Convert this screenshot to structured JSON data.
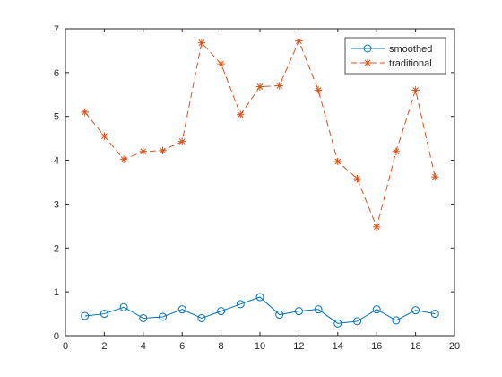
{
  "chart_data": {
    "type": "line",
    "title": "",
    "xlabel": "",
    "ylabel": "",
    "xlim": [
      0,
      20
    ],
    "ylim": [
      0,
      7
    ],
    "x_ticks": [
      0,
      2,
      4,
      6,
      8,
      10,
      12,
      14,
      16,
      18,
      20
    ],
    "y_ticks": [
      0,
      1,
      2,
      3,
      4,
      5,
      6,
      7
    ],
    "grid": false,
    "legend_position": "top-right",
    "x": [
      1,
      2,
      3,
      4,
      5,
      6,
      7,
      8,
      9,
      10,
      11,
      12,
      13,
      14,
      15,
      16,
      17,
      18,
      19
    ],
    "series": [
      {
        "name": "smoothed",
        "color": "#0072BD",
        "marker": "circle",
        "line": "solid",
        "values": [
          0.45,
          0.5,
          0.65,
          0.4,
          0.43,
          0.6,
          0.4,
          0.56,
          0.72,
          0.88,
          0.48,
          0.56,
          0.6,
          0.28,
          0.33,
          0.6,
          0.35,
          0.58,
          0.5
        ]
      },
      {
        "name": "traditional",
        "color": "#D95319",
        "marker": "asterisk",
        "line": "dashed",
        "values": [
          5.1,
          4.55,
          4.02,
          4.2,
          4.22,
          4.43,
          6.68,
          6.2,
          5.04,
          5.68,
          5.7,
          6.72,
          5.6,
          3.97,
          3.58,
          2.48,
          4.2,
          5.6,
          3.62
        ]
      }
    ]
  }
}
